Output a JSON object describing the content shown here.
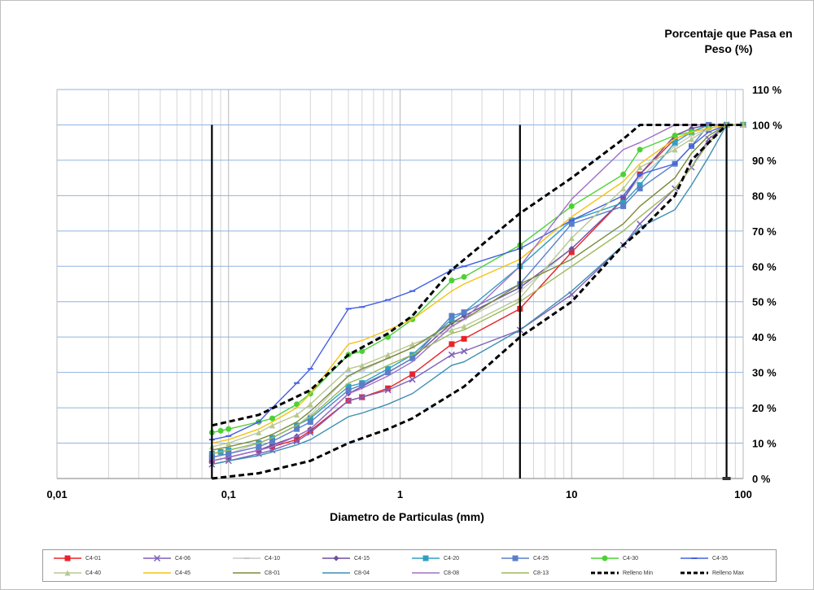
{
  "chart_data": {
    "type": "line",
    "xscale": "log",
    "xlim": [
      0.01,
      100
    ],
    "ylim": [
      0,
      110
    ],
    "xticks": [
      "0,01",
      "0,1",
      "1",
      "10",
      "100"
    ],
    "yticks": [
      "0 %",
      "10 %",
      "20 %",
      "30 %",
      "40 %",
      "50 %",
      "60 %",
      "70 %",
      "80 %",
      "90 %",
      "100 %",
      "110 %"
    ],
    "xlabel": "Diametro de Particulas (mm)",
    "ylabel_line1": "Porcentaje  que Pasa en",
    "ylabel_line2": "Peso (%)",
    "grid": true,
    "legend_position": "bottom",
    "vertical_lines": [
      0.08,
      5,
      80
    ],
    "series": [
      {
        "name": "C4-01",
        "color": "#e8232a",
        "marker": "square",
        "x": [
          0.08,
          0.1,
          0.15,
          0.18,
          0.25,
          0.3,
          0.5,
          0.6,
          0.85,
          1.18,
          2,
          2.36,
          5,
          10,
          20,
          25,
          40,
          50,
          63,
          80,
          100
        ],
        "y": [
          5,
          6,
          8,
          9,
          11,
          13.5,
          22,
          23,
          25.5,
          29.5,
          38,
          39.5,
          48,
          64,
          79,
          86,
          96,
          98,
          100,
          100,
          100
        ]
      },
      {
        "name": "C4-06",
        "color": "#7e5fb8",
        "marker": "x",
        "x": [
          0.08,
          0.1,
          0.15,
          0.18,
          0.25,
          0.3,
          0.5,
          0.6,
          0.85,
          1.18,
          2,
          2.36,
          5,
          10,
          20,
          25,
          40,
          50,
          63,
          80,
          100
        ],
        "y": [
          4,
          5,
          7,
          8,
          10.5,
          13,
          22,
          23,
          25,
          28,
          35,
          36,
          42,
          52,
          66,
          72,
          82,
          88,
          96,
          100,
          100
        ]
      },
      {
        "name": "C4-10",
        "color": "#c8c8c8",
        "marker": "dash",
        "x": [
          0.08,
          0.1,
          0.15,
          0.18,
          0.25,
          0.3,
          0.5,
          0.6,
          0.85,
          1.18,
          2,
          2.36,
          5,
          10,
          20,
          25,
          40,
          50,
          63,
          80,
          100
        ],
        "y": [
          6,
          7,
          10,
          11.5,
          15,
          18,
          29,
          30.5,
          34,
          37,
          43,
          45,
          53,
          65,
          79,
          85,
          94,
          97,
          99,
          100,
          100
        ]
      },
      {
        "name": "C4-15",
        "color": "#6d4fa0",
        "marker": "diamond",
        "x": [
          0.08,
          0.1,
          0.15,
          0.18,
          0.25,
          0.3,
          0.5,
          0.6,
          0.85,
          1.18,
          2,
          2.36,
          5,
          10,
          20,
          25,
          40,
          50,
          63,
          80,
          100
        ],
        "y": [
          5,
          6,
          8,
          9.5,
          12,
          14,
          24,
          26,
          30,
          34,
          44,
          46,
          54,
          65,
          79,
          86,
          97,
          99,
          100,
          100,
          100
        ]
      },
      {
        "name": "C4-20",
        "color": "#31a0c0",
        "marker": "square",
        "x": [
          0.08,
          0.09,
          0.1,
          0.15,
          0.18,
          0.25,
          0.3,
          0.5,
          0.6,
          0.85,
          1.18,
          2,
          2.36,
          5,
          10,
          20,
          25,
          40,
          50,
          63,
          80,
          100
        ],
        "y": [
          7,
          7.5,
          8,
          10,
          11.5,
          15,
          17,
          26,
          27,
          31,
          35,
          45,
          47,
          60,
          73,
          78,
          83,
          95,
          98,
          100,
          100,
          100
        ]
      },
      {
        "name": "C4-25",
        "color": "#5b7ec8",
        "marker": "square",
        "x": [
          0.08,
          0.1,
          0.15,
          0.18,
          0.25,
          0.3,
          0.5,
          0.6,
          0.85,
          1.18,
          2,
          2.36,
          5,
          10,
          20,
          25,
          40,
          50,
          63,
          80,
          100
        ],
        "y": [
          6,
          7,
          9,
          10.5,
          14,
          16,
          25,
          26.5,
          30,
          34,
          46,
          47,
          55,
          72,
          77,
          82,
          89,
          94,
          100,
          100,
          100
        ]
      },
      {
        "name": "C4-30",
        "color": "#4cd135",
        "marker": "circle",
        "x": [
          0.08,
          0.09,
          0.1,
          0.15,
          0.18,
          0.25,
          0.3,
          0.5,
          0.6,
          0.85,
          1.18,
          2,
          2.36,
          5,
          10,
          20,
          25,
          40,
          50,
          63,
          80,
          100
        ],
        "y": [
          13,
          13.5,
          14,
          16,
          17,
          21,
          24,
          35,
          36,
          40,
          45,
          56,
          57,
          66,
          77,
          86,
          93,
          97,
          98,
          99,
          100,
          100
        ]
      },
      {
        "name": "C4-35",
        "color": "#4560e0",
        "marker": "dash",
        "x": [
          0.08,
          0.1,
          0.15,
          0.18,
          0.25,
          0.3,
          0.5,
          0.6,
          0.85,
          1.18,
          2,
          2.36,
          5,
          10,
          20,
          25,
          40,
          50,
          63,
          80,
          100
        ],
        "y": [
          11,
          12,
          16,
          20,
          27,
          31,
          48,
          48.5,
          50.5,
          53,
          59,
          60,
          65,
          73,
          80,
          86,
          89,
          94,
          98,
          100,
          100
        ]
      },
      {
        "name": "C4-40",
        "color": "#b8c890",
        "marker": "triangle",
        "x": [
          0.08,
          0.1,
          0.15,
          0.18,
          0.25,
          0.3,
          0.5,
          0.6,
          0.85,
          1.18,
          2,
          2.36,
          5,
          10,
          20,
          25,
          40,
          50,
          63,
          80,
          100
        ],
        "y": [
          9,
          10,
          13,
          15,
          18,
          21,
          31,
          32,
          35,
          38,
          42,
          43,
          51,
          68,
          82,
          88,
          93,
          96,
          99,
          100,
          100
        ]
      },
      {
        "name": "C4-45",
        "color": "#f5c211",
        "marker": "none",
        "x": [
          0.08,
          0.1,
          0.15,
          0.18,
          0.25,
          0.3,
          0.5,
          0.6,
          0.85,
          1.18,
          2,
          2.36,
          5,
          10,
          20,
          25,
          40,
          50,
          63,
          80,
          100
        ],
        "y": [
          10,
          11,
          14,
          16,
          20,
          24,
          38,
          39,
          42,
          45,
          53,
          55,
          62,
          74,
          84,
          89,
          96,
          98,
          99,
          100,
          100
        ]
      },
      {
        "name": "C8-01",
        "color": "#7a8c3a",
        "marker": "none",
        "x": [
          0.08,
          0.1,
          0.15,
          0.18,
          0.25,
          0.3,
          0.5,
          0.6,
          0.85,
          1.18,
          2,
          2.36,
          5,
          10,
          20,
          25,
          40,
          50,
          63,
          80,
          100
        ],
        "y": [
          8,
          9,
          11,
          12.5,
          16,
          19,
          29,
          31,
          34,
          37,
          44,
          45,
          55,
          62,
          72,
          77,
          85,
          92,
          97,
          100,
          100
        ]
      },
      {
        "name": "C8-04",
        "color": "#3f8fb0",
        "marker": "none",
        "x": [
          0.08,
          0.1,
          0.15,
          0.18,
          0.25,
          0.3,
          0.5,
          0.6,
          0.85,
          1.18,
          2,
          2.36,
          5,
          10,
          20,
          25,
          40,
          50,
          63,
          80,
          100
        ],
        "y": [
          4,
          5,
          6.5,
          7.5,
          9.5,
          11,
          17.5,
          18.5,
          21,
          24,
          32,
          33,
          42,
          53,
          66,
          71,
          76,
          83,
          91,
          100,
          100
        ]
      },
      {
        "name": "C8-08",
        "color": "#a070c8",
        "marker": "none",
        "x": [
          0.08,
          0.1,
          0.15,
          0.18,
          0.25,
          0.3,
          0.5,
          0.6,
          0.85,
          1.18,
          2,
          2.36,
          5,
          10,
          20,
          25,
          40,
          50,
          63,
          80,
          100
        ],
        "y": [
          5,
          6,
          8,
          9,
          12,
          14,
          24,
          25.5,
          29,
          33,
          43,
          45,
          60,
          79,
          93,
          95,
          100,
          100,
          100,
          100,
          100
        ]
      },
      {
        "name": "C8-13",
        "color": "#9cb85a",
        "marker": "none",
        "x": [
          0.08,
          0.1,
          0.15,
          0.18,
          0.25,
          0.3,
          0.5,
          0.6,
          0.85,
          1.18,
          2,
          2.36,
          5,
          10,
          20,
          25,
          40,
          50,
          63,
          80,
          100
        ],
        "y": [
          7,
          8,
          10,
          11.5,
          15,
          17.5,
          27,
          28.5,
          32,
          35,
          41,
          42,
          50,
          60,
          70,
          74,
          82,
          88,
          95,
          100,
          100
        ]
      },
      {
        "name": "Relleno Min",
        "color": "#000000",
        "marker": "none",
        "dashed": true,
        "x": [
          0.08,
          0.15,
          0.3,
          0.5,
          0.85,
          1.18,
          2.36,
          5,
          10,
          20,
          25,
          40,
          50,
          63,
          80
        ],
        "y": [
          0,
          1.5,
          5,
          10,
          14,
          17,
          26,
          40,
          50,
          66,
          70,
          80,
          90,
          95,
          100
        ]
      },
      {
        "name": "Relleno Max",
        "color": "#000000",
        "marker": "none",
        "dashed": true,
        "x": [
          0.08,
          0.15,
          0.3,
          0.5,
          0.85,
          1.18,
          2,
          5,
          10,
          20,
          25,
          40,
          50,
          63,
          80,
          100
        ],
        "y": [
          15,
          18,
          25,
          35,
          41,
          46,
          59,
          75,
          85,
          96,
          100,
          100,
          100,
          100,
          100,
          100
        ]
      }
    ]
  }
}
